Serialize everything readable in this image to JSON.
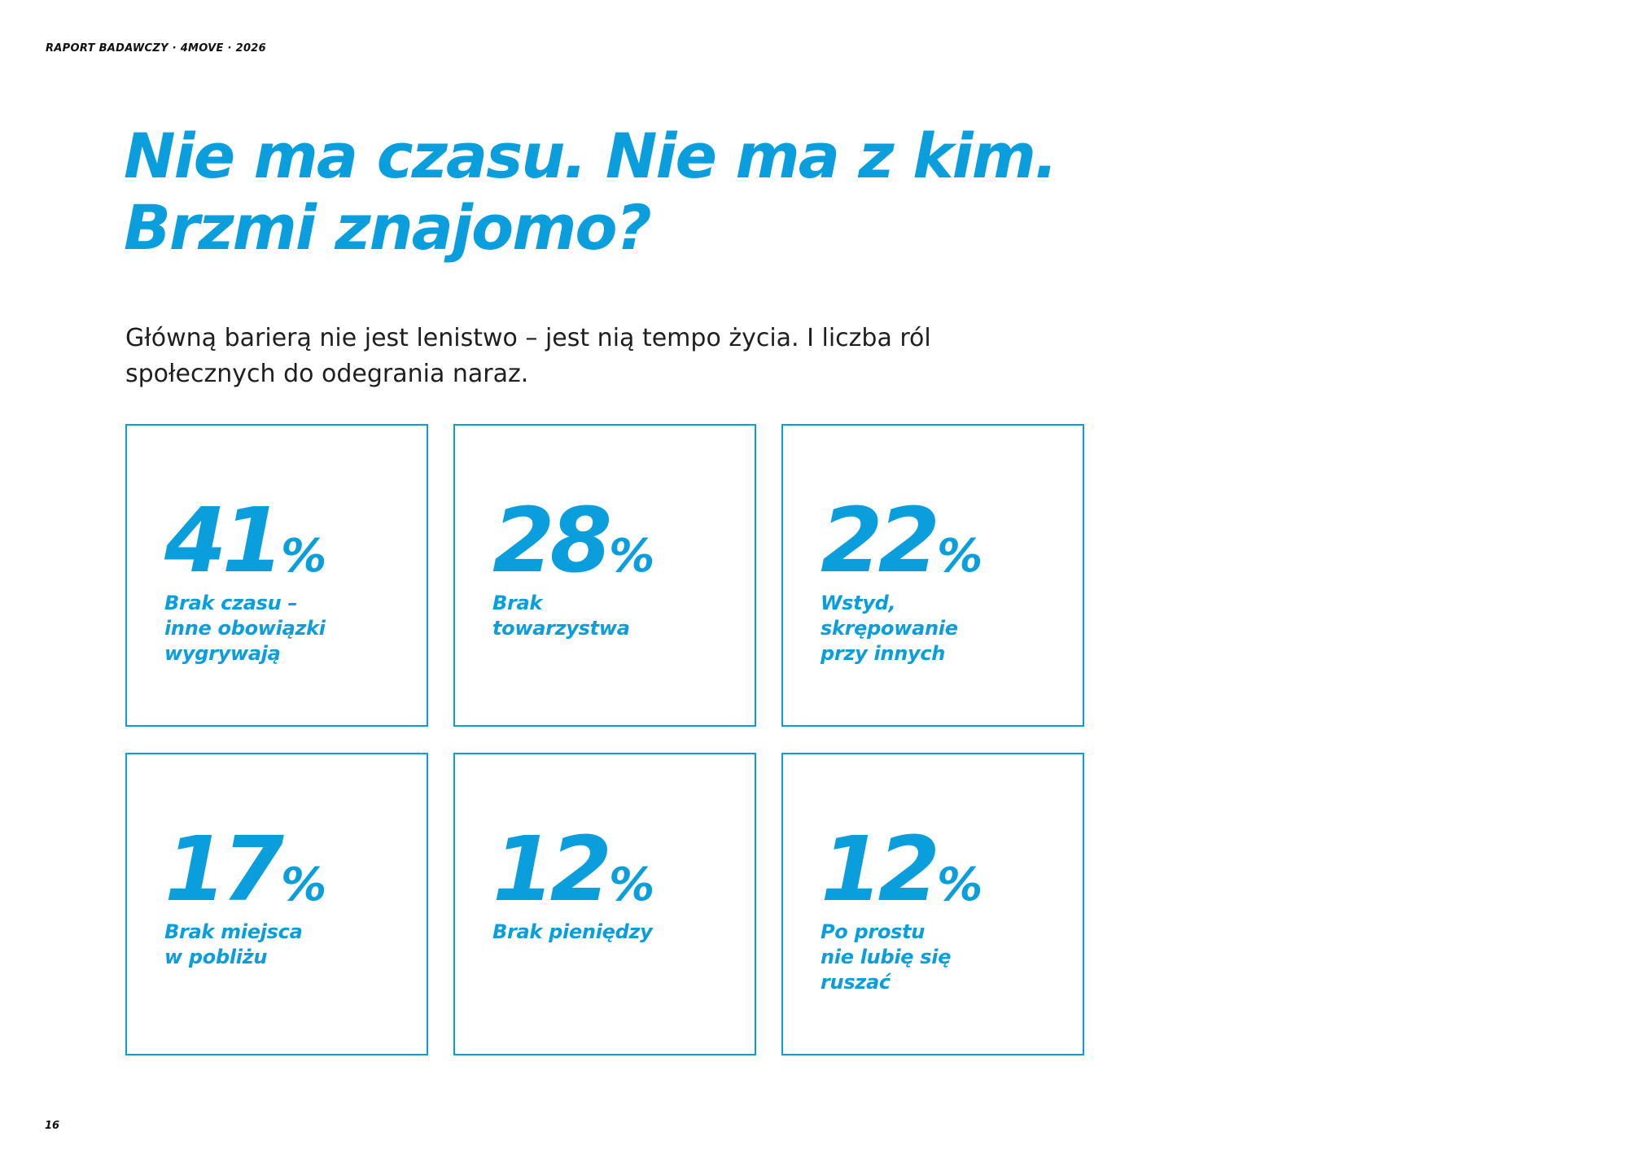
{
  "colors": {
    "accent": "#0a9fdc",
    "text": "#1f1f1f"
  },
  "header": {
    "label": "RAPORT BADAWCZY · 4MOVE · 2026"
  },
  "title": {
    "lines": [
      "Nie ma czasu. Nie ma z kim.",
      "Brzmi znajomo?"
    ]
  },
  "lead": {
    "lines": [
      "Główną barierą nie jest lenistwo – jest nią tempo życia. I liczba ról",
      "społecznych do odegrania naraz."
    ]
  },
  "stats": [
    {
      "value": "41",
      "unit": "%",
      "label_lines": [
        "Brak czasu –",
        "inne obowiązki",
        "wygrywają"
      ]
    },
    {
      "value": "28",
      "unit": "%",
      "label_lines": [
        "Brak",
        "towarzystwa"
      ]
    },
    {
      "value": "22",
      "unit": "%",
      "label_lines": [
        "Wstyd,",
        "skrępowanie",
        "przy innych"
      ]
    },
    {
      "value": "17",
      "unit": "%",
      "label_lines": [
        "Brak miejsca",
        "w pobliżu"
      ]
    },
    {
      "value": "12",
      "unit": "%",
      "label_lines": [
        "Brak pieniędzy"
      ]
    },
    {
      "value": "12",
      "unit": "%",
      "label_lines": [
        "Po prostu",
        "nie lubię się",
        "ruszać"
      ]
    }
  ],
  "footer": {
    "page_number": "16"
  }
}
